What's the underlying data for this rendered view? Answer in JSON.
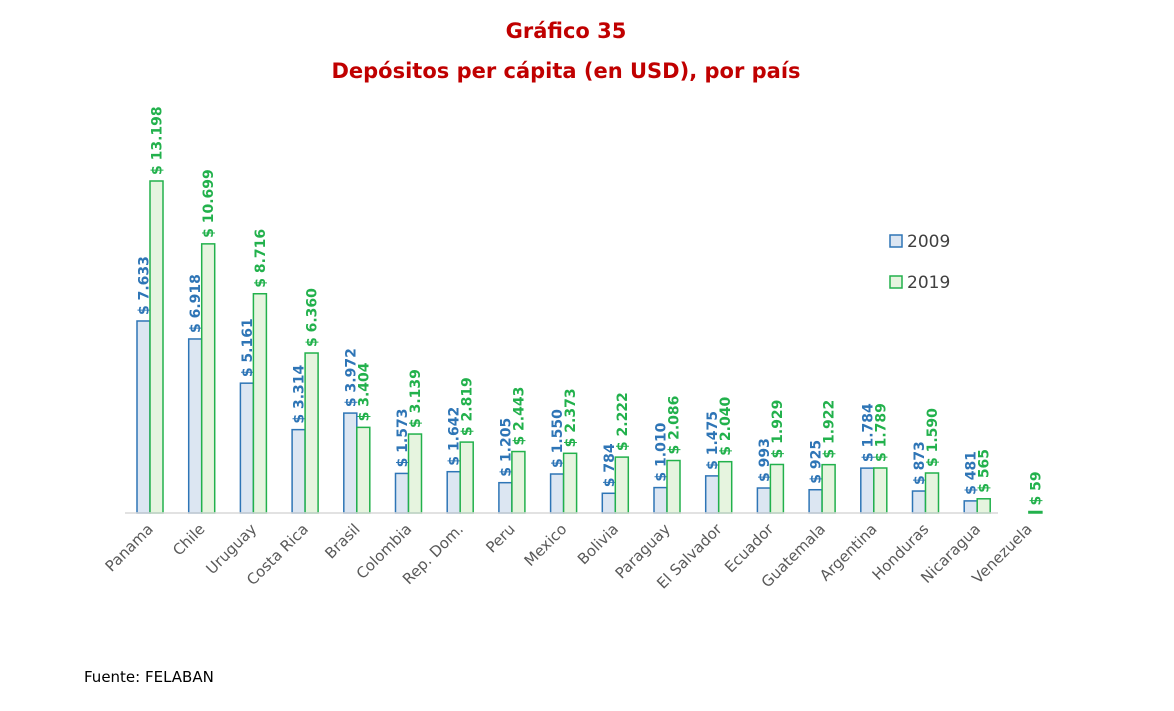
{
  "chart_data": {
    "type": "bar",
    "title": "Gráfico 35",
    "subtitle": "Depósitos per cápita (en USD), por país",
    "source": "Fuente: FELABAN",
    "categories": [
      "Panama",
      "Chile",
      "Uruguay",
      "Costa Rica",
      "Brasil",
      "Colombia",
      "Rep. Dom.",
      "Peru",
      "Mexico",
      "Bolivia",
      "Paraguay",
      "El Salvador",
      "Ecuador",
      "Guatemala",
      "Argentina",
      "Honduras",
      "Nicaragua",
      "Venezuela"
    ],
    "series": [
      {
        "name": "2009",
        "color": "#2e75b6",
        "fill": "#dce6f2",
        "values": [
          7633,
          6918,
          5161,
          3314,
          3972,
          1573,
          1642,
          1205,
          1550,
          784,
          1010,
          1475,
          993,
          925,
          1784,
          873,
          481,
          null
        ],
        "labels": [
          "$ 7.633",
          "$ 6.918",
          "$ 5.161",
          "$ 3.314",
          "$ 3.972",
          "$ 1.573",
          "$ 1.642",
          "$ 1.205",
          "$ 1.550",
          "$ 784",
          "$ 1.010",
          "$ 1.475",
          "$ 993",
          "$ 925",
          "$ 1.784",
          "$ 873",
          "$ 481",
          null
        ]
      },
      {
        "name": "2019",
        "color": "#22b14c",
        "fill": "#e6f4df",
        "values": [
          13198,
          10699,
          8716,
          6360,
          3404,
          3139,
          2819,
          2443,
          2373,
          2222,
          2086,
          2040,
          1929,
          1922,
          1789,
          1590,
          565,
          59
        ],
        "labels": [
          "$ 13.198",
          "$ 10.699",
          "$ 8.716",
          "$ 6.360",
          "$ 3.404",
          "$ 3.139",
          "$ 2.819",
          "$ 2.443",
          "$ 2.373",
          "$ 2.222",
          "$ 2.086",
          "$ 2.040",
          "$ 1.929",
          "$ 1.922",
          "$ 1.789",
          "$ 1.590",
          "$ 565",
          "$ 59"
        ]
      }
    ],
    "ylim": [
      0,
      13198
    ],
    "grid": false,
    "legend": "right"
  }
}
